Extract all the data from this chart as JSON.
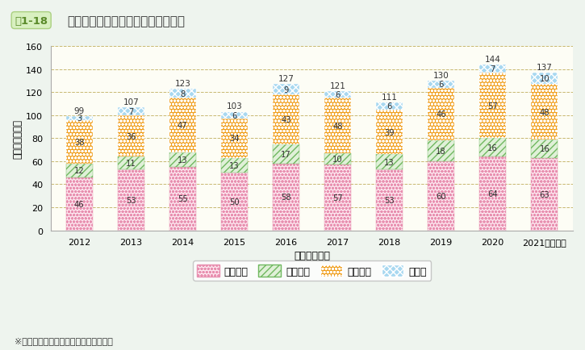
{
  "years": [
    "2012",
    "2013",
    "2014",
    "2015",
    "2016",
    "2017",
    "2018",
    "2019",
    "2020",
    "2021（年度）"
  ],
  "years_display": [
    "2012",
    "2013",
    "2014",
    "2015",
    "2016",
    "2017",
    "2018",
    "2019",
    "2020",
    "2021（年度）"
  ],
  "kokuritsu": [
    46,
    53,
    55,
    50,
    58,
    57,
    53,
    60,
    64,
    63
  ],
  "kouritsu": [
    12,
    11,
    13,
    13,
    17,
    10,
    13,
    18,
    16,
    16
  ],
  "shiritsu": [
    38,
    36,
    47,
    34,
    43,
    48,
    39,
    46,
    57,
    48
  ],
  "sonota": [
    3,
    7,
    8,
    6,
    9,
    6,
    6,
    6,
    7,
    10
  ],
  "totals": [
    99,
    107,
    123,
    103,
    127,
    121,
    111,
    130,
    144,
    137
  ],
  "color_kokuritsu": "#f9b8cf",
  "color_kouritsu": "#a8d8a0",
  "color_shiritsu": "#f0a020",
  "color_sonota": "#80c8e0",
  "bg_outer": "#eef4ee",
  "bg_plot": "#fdfdf5",
  "title_label": "図1-18",
  "title_main": "総合職試験合格者の出身大学等の数",
  "xlabel": "試験実施年度",
  "ylabel": "（大学等の数）",
  "ylim": [
    0,
    160
  ],
  "yticks": [
    0,
    20,
    40,
    60,
    80,
    100,
    120,
    140,
    160
  ],
  "legend_labels": [
    "国立大学",
    "公立大学",
    "私立大学",
    "その他"
  ],
  "footnote": "※「その他」は、短大・高専等である。"
}
